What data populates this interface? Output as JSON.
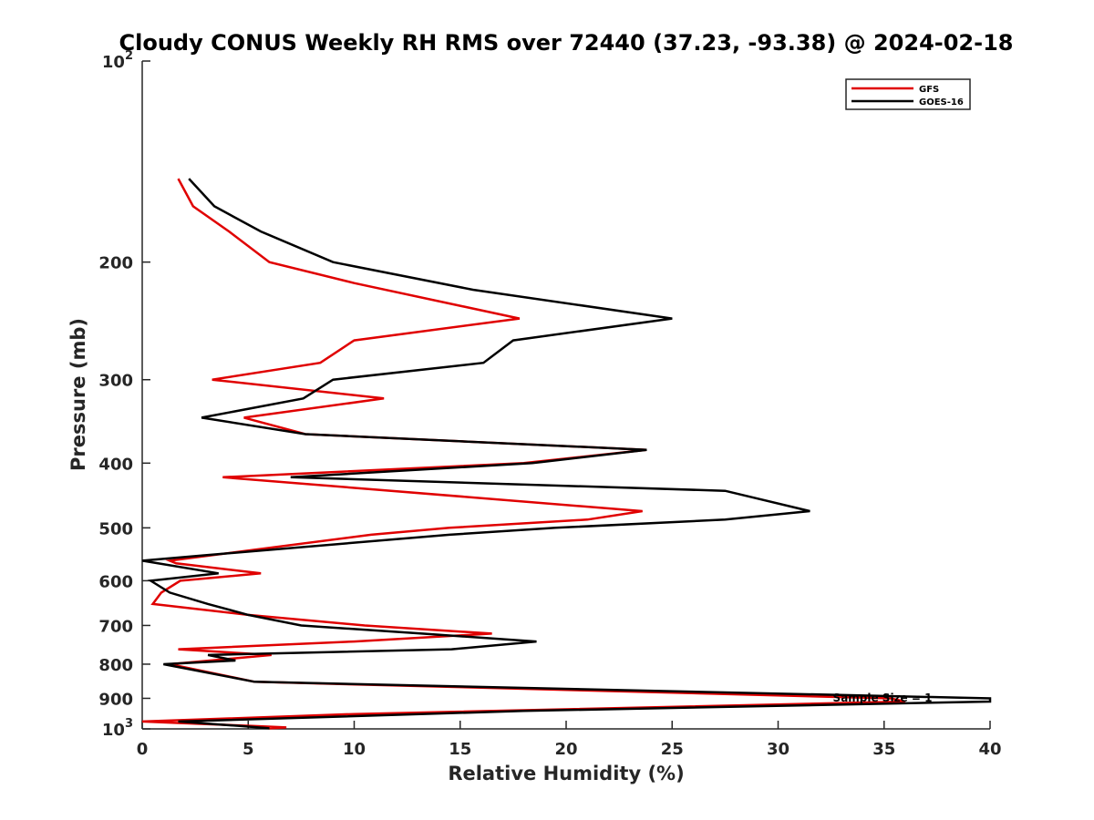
{
  "chart_data": {
    "type": "line",
    "title": "Cloudy CONUS Weekly RH RMS over 72440 (37.23, -93.38) @ 2024-02-18",
    "xlabel": "Relative Humidity (%)",
    "ylabel": "Pressure (mb)",
    "xlim": [
      0,
      40
    ],
    "ylim": [
      100,
      1000
    ],
    "y_scale": "log",
    "y_reversed": true,
    "x_ticks": [
      0,
      5,
      10,
      15,
      20,
      25,
      30,
      35,
      40
    ],
    "y_ticks": [
      {
        "value": 100,
        "base": "10",
        "exp": "2"
      },
      {
        "value": 200,
        "label": "200"
      },
      {
        "value": 300,
        "label": "300"
      },
      {
        "value": 400,
        "label": "400"
      },
      {
        "value": 500,
        "label": "500"
      },
      {
        "value": 600,
        "label": "600"
      },
      {
        "value": 700,
        "label": "700"
      },
      {
        "value": 800,
        "label": "800"
      },
      {
        "value": 900,
        "label": "900"
      },
      {
        "value": 1000,
        "base": "10",
        "exp": "3"
      }
    ],
    "grid": false,
    "legend_position": "top-right",
    "annotation": "Sample Size = 1",
    "series": [
      {
        "name": "GFS",
        "color": "#e00000",
        "points": [
          [
            1.7,
            150
          ],
          [
            2.4,
            165
          ],
          [
            4.1,
            180
          ],
          [
            6.0,
            200
          ],
          [
            10.0,
            215
          ],
          [
            17.8,
            243
          ],
          [
            10.0,
            262
          ],
          [
            8.4,
            283
          ],
          [
            3.3,
            300
          ],
          [
            11.4,
            320
          ],
          [
            4.8,
            342
          ],
          [
            7.7,
            362
          ],
          [
            23.8,
            382
          ],
          [
            18.0,
            400
          ],
          [
            3.8,
            420
          ],
          [
            23.6,
            472
          ],
          [
            21.0,
            486
          ],
          [
            14.5,
            500
          ],
          [
            10.8,
            512
          ],
          [
            1.3,
            560
          ],
          [
            1.6,
            565
          ],
          [
            5.6,
            585
          ],
          [
            1.8,
            600
          ],
          [
            0.9,
            625
          ],
          [
            0.5,
            650
          ],
          [
            5.0,
            675
          ],
          [
            10.5,
            700
          ],
          [
            16.5,
            720
          ],
          [
            10.0,
            740
          ],
          [
            1.7,
            760
          ],
          [
            6.1,
            775
          ],
          [
            1.3,
            800
          ],
          [
            5.3,
            850
          ],
          [
            35.3,
            900
          ],
          [
            36.0,
            910
          ],
          [
            10.0,
            950
          ],
          [
            0.0,
            975
          ],
          [
            1.8,
            980
          ],
          [
            5.2,
            990
          ],
          [
            6.8,
            995
          ],
          [
            6.0,
            998
          ]
        ]
      },
      {
        "name": "GOES-16",
        "color": "#000000",
        "points": [
          [
            2.2,
            150
          ],
          [
            3.4,
            165
          ],
          [
            5.6,
            180
          ],
          [
            9.0,
            200
          ],
          [
            15.6,
            220
          ],
          [
            25.0,
            243
          ],
          [
            17.5,
            262
          ],
          [
            16.1,
            283
          ],
          [
            9.0,
            300
          ],
          [
            7.6,
            320
          ],
          [
            2.8,
            342
          ],
          [
            7.7,
            362
          ],
          [
            23.8,
            382
          ],
          [
            18.4,
            400
          ],
          [
            7.0,
            420
          ],
          [
            27.5,
            440
          ],
          [
            31.5,
            472
          ],
          [
            27.5,
            486
          ],
          [
            19.5,
            500
          ],
          [
            14.5,
            512
          ],
          [
            2.8,
            550
          ],
          [
            0.0,
            560
          ],
          [
            3.6,
            585
          ],
          [
            0.4,
            600
          ],
          [
            1.3,
            625
          ],
          [
            3.1,
            650
          ],
          [
            5.0,
            675
          ],
          [
            7.5,
            700
          ],
          [
            13.2,
            720
          ],
          [
            18.6,
            740
          ],
          [
            14.6,
            760
          ],
          [
            3.1,
            775
          ],
          [
            4.4,
            790
          ],
          [
            1.0,
            800
          ],
          [
            5.3,
            850
          ],
          [
            40.0,
            900
          ],
          [
            40.0,
            910
          ],
          [
            18.0,
            940
          ],
          [
            1.7,
            975
          ],
          [
            4.6,
            990
          ],
          [
            6.0,
            998
          ]
        ]
      }
    ]
  }
}
